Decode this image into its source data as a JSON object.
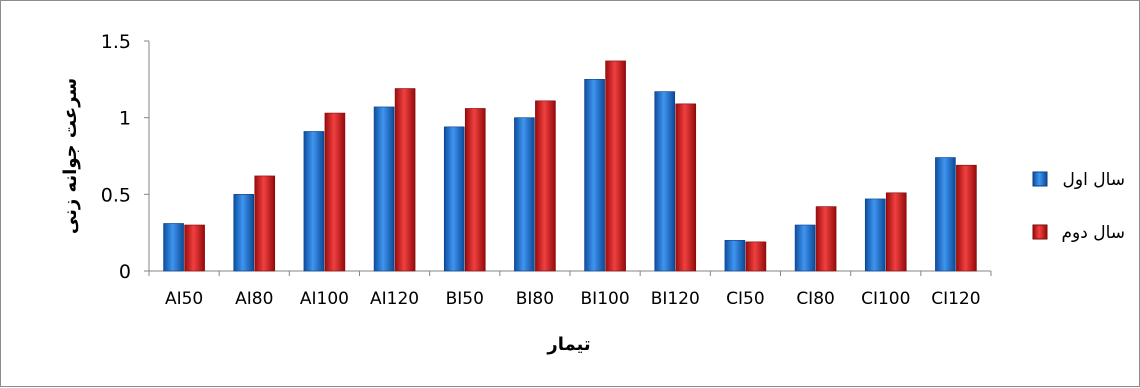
{
  "chart_data": {
    "type": "bar",
    "categories": [
      "AI50",
      "AI80",
      "AI100",
      "AI120",
      "BI50",
      "BI80",
      "BI100",
      "BI120",
      "CI50",
      "CI80",
      "CI100",
      "CI120"
    ],
    "series": [
      {
        "name": "سال اول",
        "color": "#1f6fce",
        "values": [
          0.31,
          0.5,
          0.91,
          1.07,
          0.94,
          1.0,
          1.25,
          1.17,
          0.2,
          0.3,
          0.47,
          0.74
        ]
      },
      {
        "name": "سال دوم",
        "color": "#d21f1f",
        "values": [
          0.3,
          0.62,
          1.03,
          1.19,
          1.06,
          1.11,
          1.37,
          1.09,
          0.19,
          0.42,
          0.51,
          0.69
        ]
      }
    ],
    "xlabel": "تیمار",
    "ylabel": "سرعت جوانه زنی",
    "ylim": [
      0,
      1.5
    ],
    "yticks": [
      "0",
      "0.5",
      "1",
      "1.5"
    ],
    "grid": false,
    "legend": "right"
  }
}
